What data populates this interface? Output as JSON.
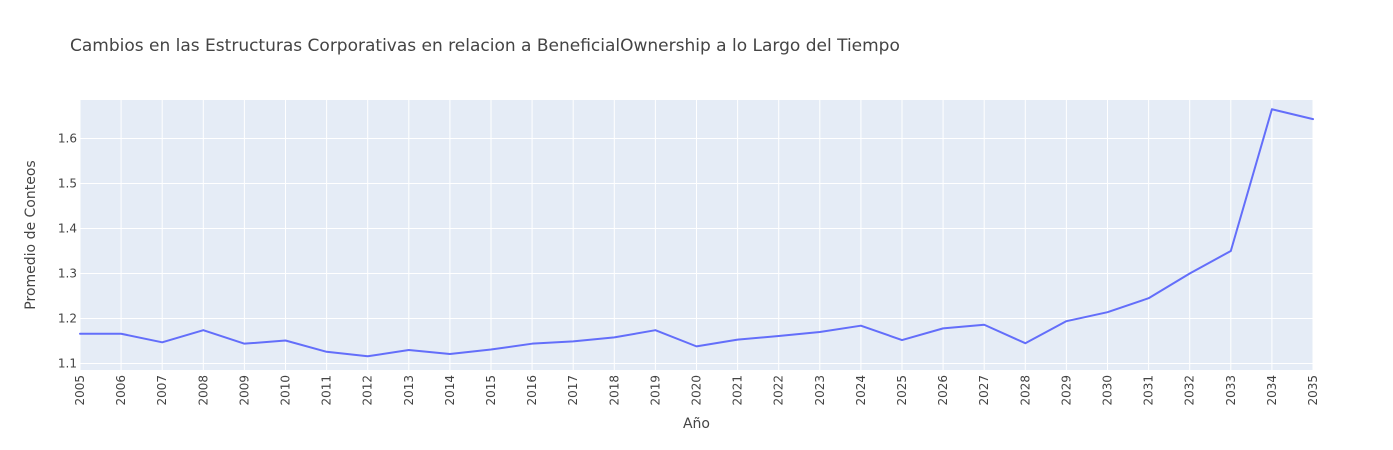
{
  "chart_data": {
    "type": "line",
    "title": "Cambios en las Estructuras Corporativas en relacion a BeneficialOwnership a lo Largo del Tiempo",
    "xlabel": "Año",
    "ylabel": "Promedio de Conteos",
    "x": [
      2005,
      2006,
      2007,
      2008,
      2009,
      2010,
      2011,
      2012,
      2013,
      2014,
      2015,
      2016,
      2017,
      2018,
      2019,
      2020,
      2021,
      2022,
      2023,
      2024,
      2025,
      2026,
      2027,
      2028,
      2029,
      2030,
      2031,
      2032,
      2033,
      2034,
      2035
    ],
    "series": [
      {
        "values": [
          1.166,
          1.166,
          1.147,
          1.174,
          1.144,
          1.151,
          1.126,
          1.116,
          1.13,
          1.121,
          1.131,
          1.144,
          1.149,
          1.158,
          1.174,
          1.138,
          1.153,
          1.161,
          1.17,
          1.184,
          1.152,
          1.178,
          1.186,
          1.145,
          1.194,
          1.214,
          1.245,
          1.3,
          1.35,
          1.665,
          1.643
        ],
        "color": "#636efa"
      }
    ],
    "xlim": [
      2005,
      2035
    ],
    "ylim": [
      1.0855,
      1.6855
    ],
    "yticks": [
      1.1,
      1.2,
      1.3,
      1.4,
      1.5,
      1.6
    ],
    "ytick_labels": [
      "1.1",
      "1.2",
      "1.3",
      "1.4",
      "1.5",
      "1.6"
    ],
    "grid": true,
    "plot_bgcolor": "#e5ecf6",
    "grid_color": "#ffffff",
    "legend": "none"
  }
}
